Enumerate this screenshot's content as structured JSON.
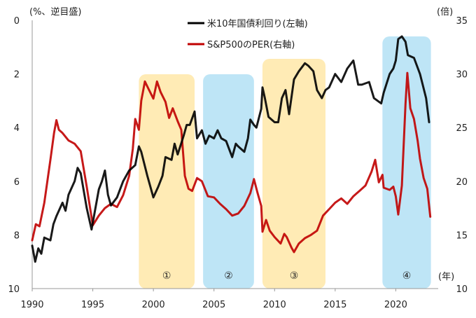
{
  "chart_data": {
    "type": "line",
    "left_axis_label": "(%、逆目盛)",
    "right_axis_label": "(倍)",
    "x_unit_label": "(年)",
    "x_ticks": [
      "1990",
      "1995",
      "2000",
      "2005",
      "2010",
      "2015",
      "2020"
    ],
    "x_range": [
      1990,
      2023.5
    ],
    "left_ticks": [
      "0",
      "2",
      "4",
      "6",
      "8",
      "10"
    ],
    "left_range_inverted": [
      0,
      10
    ],
    "right_ticks": [
      "35",
      "30",
      "25",
      "20",
      "15",
      "10"
    ],
    "right_range": [
      10,
      35
    ],
    "shaded_periods": [
      {
        "label": "①",
        "start": 1998.8,
        "end": 2003.4,
        "color": "#FFE8A8"
      },
      {
        "label": "②",
        "start": 2004.1,
        "end": 2008.3,
        "color": "#B3E1F5"
      },
      {
        "label": "③",
        "start": 2009.0,
        "end": 2014.2,
        "color": "#FFE8A8"
      },
      {
        "label": "④",
        "start": 2018.9,
        "end": 2022.9,
        "color": "#B3E1F5"
      }
    ],
    "series": [
      {
        "name": "米10年国債利回り(左軸)",
        "axis": "left",
        "color": "#000000",
        "points": [
          [
            1990.0,
            8.4
          ],
          [
            1990.25,
            9.0
          ],
          [
            1990.5,
            8.5
          ],
          [
            1990.75,
            8.7
          ],
          [
            1991.0,
            8.1
          ],
          [
            1991.5,
            8.2
          ],
          [
            1991.75,
            7.6
          ],
          [
            1992.0,
            7.3
          ],
          [
            1992.5,
            6.8
          ],
          [
            1992.75,
            7.1
          ],
          [
            1993.0,
            6.5
          ],
          [
            1993.5,
            6.0
          ],
          [
            1993.75,
            5.5
          ],
          [
            1994.0,
            5.7
          ],
          [
            1994.5,
            7.0
          ],
          [
            1994.9,
            7.8
          ],
          [
            1995.5,
            6.3
          ],
          [
            1995.75,
            6.0
          ],
          [
            1996.0,
            5.6
          ],
          [
            1996.25,
            6.5
          ],
          [
            1996.5,
            6.9
          ],
          [
            1997.0,
            6.6
          ],
          [
            1997.5,
            6.0
          ],
          [
            1998.0,
            5.6
          ],
          [
            1998.5,
            5.4
          ],
          [
            1998.8,
            4.7
          ],
          [
            1999.0,
            4.9
          ],
          [
            1999.5,
            5.8
          ],
          [
            2000.0,
            6.6
          ],
          [
            2000.4,
            6.2
          ],
          [
            2000.75,
            5.8
          ],
          [
            2001.0,
            5.1
          ],
          [
            2001.5,
            5.2
          ],
          [
            2001.75,
            4.6
          ],
          [
            2002.0,
            5.0
          ],
          [
            2002.5,
            4.3
          ],
          [
            2002.75,
            3.9
          ],
          [
            2003.0,
            3.9
          ],
          [
            2003.4,
            3.4
          ],
          [
            2003.6,
            4.4
          ],
          [
            2004.0,
            4.1
          ],
          [
            2004.3,
            4.6
          ],
          [
            2004.6,
            4.3
          ],
          [
            2005.0,
            4.4
          ],
          [
            2005.3,
            4.1
          ],
          [
            2005.6,
            4.4
          ],
          [
            2006.0,
            4.5
          ],
          [
            2006.5,
            5.1
          ],
          [
            2006.8,
            4.6
          ],
          [
            2007.0,
            4.7
          ],
          [
            2007.5,
            4.9
          ],
          [
            2007.8,
            4.4
          ],
          [
            2008.0,
            3.7
          ],
          [
            2008.3,
            3.9
          ],
          [
            2008.5,
            4.0
          ],
          [
            2008.9,
            3.3
          ],
          [
            2009.0,
            2.5
          ],
          [
            2009.2,
            2.9
          ],
          [
            2009.5,
            3.6
          ],
          [
            2010.0,
            3.8
          ],
          [
            2010.3,
            3.8
          ],
          [
            2010.6,
            2.9
          ],
          [
            2010.9,
            2.6
          ],
          [
            2011.2,
            3.5
          ],
          [
            2011.6,
            2.2
          ],
          [
            2012.0,
            1.9
          ],
          [
            2012.5,
            1.6
          ],
          [
            2012.8,
            1.7
          ],
          [
            2013.2,
            1.9
          ],
          [
            2013.5,
            2.6
          ],
          [
            2013.9,
            2.9
          ],
          [
            2014.2,
            2.6
          ],
          [
            2014.5,
            2.5
          ],
          [
            2015.0,
            2.0
          ],
          [
            2015.5,
            2.3
          ],
          [
            2016.0,
            1.8
          ],
          [
            2016.5,
            1.5
          ],
          [
            2016.9,
            2.4
          ],
          [
            2017.2,
            2.4
          ],
          [
            2017.8,
            2.3
          ],
          [
            2018.2,
            2.9
          ],
          [
            2018.8,
            3.1
          ],
          [
            2019.0,
            2.7
          ],
          [
            2019.5,
            2.0
          ],
          [
            2019.8,
            1.8
          ],
          [
            2020.0,
            1.5
          ],
          [
            2020.2,
            0.7
          ],
          [
            2020.5,
            0.6
          ],
          [
            2020.8,
            0.8
          ],
          [
            2021.0,
            1.3
          ],
          [
            2021.5,
            1.4
          ],
          [
            2022.0,
            2.0
          ],
          [
            2022.5,
            2.9
          ],
          [
            2022.75,
            3.8
          ]
        ]
      },
      {
        "name": "S&P500のPER(右軸)",
        "axis": "right",
        "color": "#C00000",
        "points": [
          [
            1990.0,
            14.5
          ],
          [
            1990.3,
            16.0
          ],
          [
            1990.6,
            15.8
          ],
          [
            1991.0,
            18.0
          ],
          [
            1991.5,
            22.0
          ],
          [
            1991.8,
            24.5
          ],
          [
            1992.0,
            25.7
          ],
          [
            1992.2,
            24.8
          ],
          [
            1992.5,
            24.5
          ],
          [
            1993.0,
            23.8
          ],
          [
            1993.5,
            23.5
          ],
          [
            1994.0,
            22.8
          ],
          [
            1994.5,
            19.5
          ],
          [
            1995.0,
            15.9
          ],
          [
            1995.5,
            16.8
          ],
          [
            1996.0,
            17.5
          ],
          [
            1996.5,
            17.9
          ],
          [
            1997.0,
            17.6
          ],
          [
            1997.5,
            18.7
          ],
          [
            1998.0,
            20.5
          ],
          [
            1998.3,
            23.0
          ],
          [
            1998.5,
            25.8
          ],
          [
            1998.8,
            24.8
          ],
          [
            1999.0,
            27.5
          ],
          [
            1999.3,
            29.3
          ],
          [
            1999.6,
            28.6
          ],
          [
            2000.0,
            27.7
          ],
          [
            2000.3,
            29.3
          ],
          [
            2000.6,
            28.3
          ],
          [
            2001.0,
            27.4
          ],
          [
            2001.3,
            25.9
          ],
          [
            2001.6,
            26.8
          ],
          [
            2002.0,
            25.6
          ],
          [
            2002.3,
            24.8
          ],
          [
            2002.6,
            20.5
          ],
          [
            2002.9,
            19.3
          ],
          [
            2003.2,
            19.1
          ],
          [
            2003.6,
            20.3
          ],
          [
            2004.0,
            20.0
          ],
          [
            2004.5,
            18.6
          ],
          [
            2005.0,
            18.5
          ],
          [
            2005.5,
            17.9
          ],
          [
            2006.0,
            17.4
          ],
          [
            2006.5,
            16.8
          ],
          [
            2007.0,
            17.0
          ],
          [
            2007.5,
            17.7
          ],
          [
            2008.0,
            18.9
          ],
          [
            2008.3,
            20.2
          ],
          [
            2008.6,
            18.9
          ],
          [
            2008.9,
            17.7
          ],
          [
            2009.0,
            15.3
          ],
          [
            2009.3,
            16.4
          ],
          [
            2009.6,
            15.4
          ],
          [
            2010.0,
            14.8
          ],
          [
            2010.5,
            14.2
          ],
          [
            2010.8,
            15.1
          ],
          [
            2011.0,
            14.8
          ],
          [
            2011.4,
            13.8
          ],
          [
            2011.6,
            13.4
          ],
          [
            2012.0,
            14.2
          ],
          [
            2012.5,
            14.7
          ],
          [
            2013.0,
            15.0
          ],
          [
            2013.5,
            15.4
          ],
          [
            2014.0,
            16.8
          ],
          [
            2014.5,
            17.4
          ],
          [
            2015.0,
            18.0
          ],
          [
            2015.5,
            18.4
          ],
          [
            2016.0,
            17.9
          ],
          [
            2016.5,
            18.6
          ],
          [
            2017.0,
            19.1
          ],
          [
            2017.5,
            19.6
          ],
          [
            2018.0,
            20.9
          ],
          [
            2018.3,
            22.0
          ],
          [
            2018.6,
            19.9
          ],
          [
            2018.9,
            20.6
          ],
          [
            2019.0,
            19.4
          ],
          [
            2019.5,
            19.2
          ],
          [
            2019.8,
            19.5
          ],
          [
            2020.0,
            18.6
          ],
          [
            2020.2,
            16.9
          ],
          [
            2020.5,
            19.6
          ],
          [
            2020.8,
            27.2
          ],
          [
            2020.95,
            30.1
          ],
          [
            2021.2,
            26.8
          ],
          [
            2021.5,
            25.8
          ],
          [
            2021.8,
            23.8
          ],
          [
            2022.0,
            22.1
          ],
          [
            2022.3,
            20.3
          ],
          [
            2022.6,
            19.3
          ],
          [
            2022.85,
            16.7
          ]
        ]
      }
    ]
  }
}
